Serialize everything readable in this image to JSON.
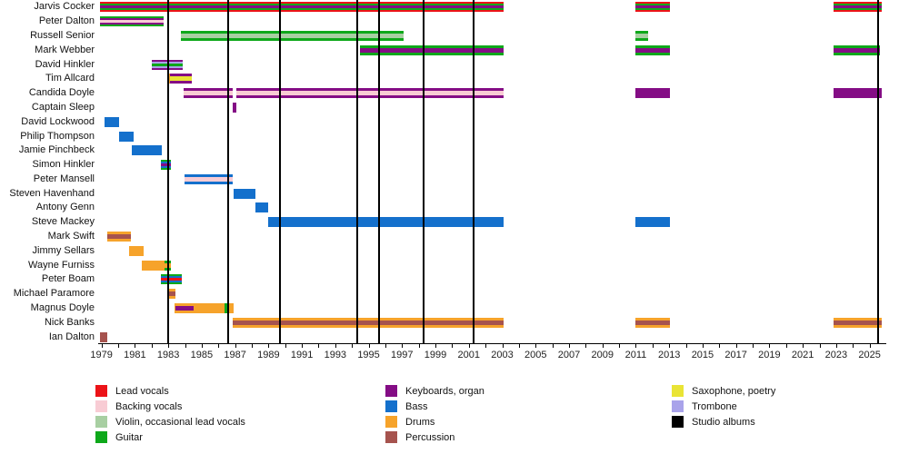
{
  "chart_data": {
    "type": "bar",
    "subtype": "gantt-timeline-band-members",
    "axis": {
      "year_min": 1978.8,
      "year_max": 2026.0,
      "tick_label_years": [
        1979,
        1981,
        1983,
        1985,
        1987,
        1989,
        1991,
        1993,
        1995,
        1997,
        1999,
        2001,
        2003,
        2005,
        2007,
        2009,
        2011,
        2013,
        2015,
        2017,
        2019,
        2021,
        2023,
        2025
      ],
      "minor_tick_step": 1,
      "grid": false
    },
    "palette": {
      "lead": "#ec1318",
      "backing": "#f8ccd4",
      "violin": "#a8cfa2",
      "guitar": "#0ea81a",
      "keys": "#840d85",
      "bass": "#1470cc",
      "drums": "#f6a32b",
      "perc": "#a6534e",
      "sax": "#e9e435",
      "tromb": "#a9a3ea",
      "album": "#000000"
    },
    "legend": {
      "position": "bottom",
      "columns": [
        [
          {
            "label": "Lead vocals",
            "color": "lead"
          },
          {
            "label": "Backing vocals",
            "color": "backing"
          },
          {
            "label": "Violin, occasional lead vocals",
            "color": "violin"
          },
          {
            "label": "Guitar",
            "color": "guitar"
          }
        ],
        [
          {
            "label": "Keyboards, organ",
            "color": "keys"
          },
          {
            "label": "Bass",
            "color": "bass"
          },
          {
            "label": "Drums",
            "color": "drums"
          },
          {
            "label": "Percussion",
            "color": "perc"
          }
        ],
        [
          {
            "label": "Saxophone, poetry",
            "color": "sax"
          },
          {
            "label": "Trombone",
            "color": "tromb"
          },
          {
            "label": "Studio albums",
            "color": "album"
          }
        ]
      ]
    },
    "album_lines": {
      "label": "Studio albums",
      "years": [
        1983.0,
        1986.6,
        1989.7,
        1994.3,
        1995.6,
        1998.3,
        2001.3,
        2025.5
      ]
    },
    "members": [
      {
        "name": "Jarvis Cocker",
        "segments": [
          {
            "start": 1978.9,
            "end": 2003.1,
            "colors": [
              "lead",
              "guitar",
              "keys"
            ]
          },
          {
            "start": 2011.0,
            "end": 2013.05,
            "colors": [
              "lead",
              "guitar",
              "keys"
            ]
          },
          {
            "start": 2022.85,
            "end": 2025.75,
            "colors": [
              "lead",
              "guitar",
              "keys"
            ]
          }
        ]
      },
      {
        "name": "Peter Dalton",
        "segments": [
          {
            "start": 1978.9,
            "end": 1982.7,
            "colors": [
              "guitar",
              "keys",
              "backing"
            ]
          }
        ]
      },
      {
        "name": "Russell Senior",
        "segments": [
          {
            "start": 1983.75,
            "end": 1997.1,
            "colors": [
              "guitar",
              "violin"
            ]
          },
          {
            "start": 2011.0,
            "end": 2011.75,
            "colors": [
              "guitar",
              "violin"
            ]
          }
        ]
      },
      {
        "name": "Mark Webber",
        "segments": [
          {
            "start": 1994.5,
            "end": 2003.1,
            "colors": [
              "guitar",
              "keys"
            ]
          },
          {
            "start": 2011.0,
            "end": 2013.05,
            "colors": [
              "guitar",
              "keys"
            ]
          },
          {
            "start": 2022.85,
            "end": 2025.6,
            "colors": [
              "guitar",
              "keys"
            ]
          }
        ]
      },
      {
        "name": "David Hinkler",
        "segments": [
          {
            "start": 1982.0,
            "end": 1983.85,
            "colors": [
              "keys",
              "tromb",
              "guitar"
            ]
          }
        ]
      },
      {
        "name": "Tim Allcard",
        "segments": [
          {
            "start": 1983.0,
            "end": 1983.4,
            "colors": [
              "drums"
            ]
          },
          {
            "start": 1983.1,
            "end": 1984.4,
            "colors": [
              "keys",
              "sax"
            ]
          }
        ]
      },
      {
        "name": "Candida Doyle",
        "segments": [
          {
            "start": 1983.9,
            "end": 1986.85,
            "colors": [
              "keys",
              "backing"
            ]
          },
          {
            "start": 1987.1,
            "end": 2003.1,
            "colors": [
              "keys",
              "backing"
            ]
          },
          {
            "start": 2011.0,
            "end": 2013.05,
            "colors": [
              "keys"
            ]
          },
          {
            "start": 2022.85,
            "end": 2025.75,
            "colors": [
              "keys"
            ]
          }
        ]
      },
      {
        "name": "Captain Sleep",
        "segments": [
          {
            "start": 1986.85,
            "end": 1987.1,
            "colors": [
              "keys"
            ]
          }
        ]
      },
      {
        "name": "David Lockwood",
        "segments": [
          {
            "start": 1979.2,
            "end": 1980.05,
            "colors": [
              "bass"
            ]
          }
        ]
      },
      {
        "name": "Philip Thompson",
        "segments": [
          {
            "start": 1980.05,
            "end": 1980.9,
            "colors": [
              "bass"
            ]
          }
        ]
      },
      {
        "name": "Jamie Pinchbeck",
        "segments": [
          {
            "start": 1980.8,
            "end": 1982.6,
            "colors": [
              "bass"
            ]
          }
        ]
      },
      {
        "name": "Simon Hinkler",
        "segments": [
          {
            "start": 1982.55,
            "end": 1983.15,
            "colors": [
              "guitar",
              "bass",
              "keys"
            ]
          }
        ]
      },
      {
        "name": "Peter Mansell",
        "segments": [
          {
            "start": 1983.95,
            "end": 1986.85,
            "colors": [
              "bass",
              "backing"
            ]
          }
        ]
      },
      {
        "name": "Steven Havenhand",
        "segments": [
          {
            "start": 1986.9,
            "end": 1988.2,
            "colors": [
              "bass"
            ]
          }
        ]
      },
      {
        "name": "Antony Genn",
        "segments": [
          {
            "start": 1988.2,
            "end": 1989.0,
            "colors": [
              "bass"
            ]
          }
        ]
      },
      {
        "name": "Steve Mackey",
        "segments": [
          {
            "start": 1989.0,
            "end": 2003.1,
            "colors": [
              "bass"
            ]
          },
          {
            "start": 2011.0,
            "end": 2013.05,
            "colors": [
              "bass"
            ]
          }
        ]
      },
      {
        "name": "Mark Swift",
        "segments": [
          {
            "start": 1979.35,
            "end": 1980.75,
            "colors": [
              "drums",
              "perc"
            ]
          }
        ]
      },
      {
        "name": "Jimmy Sellars",
        "segments": [
          {
            "start": 1980.65,
            "end": 1981.5,
            "colors": [
              "drums"
            ]
          }
        ]
      },
      {
        "name": "Wayne Furniss",
        "segments": [
          {
            "start": 1981.4,
            "end": 1982.75,
            "colors": [
              "drums"
            ]
          },
          {
            "start": 1982.75,
            "end": 1983.15,
            "colors": [
              "guitar",
              "drums"
            ]
          }
        ]
      },
      {
        "name": "Peter Boam",
        "segments": [
          {
            "start": 1982.55,
            "end": 1983.8,
            "colors": [
              "guitar",
              "bass",
              "lead"
            ]
          }
        ]
      },
      {
        "name": "Michael Paramore",
        "segments": [
          {
            "start": 1983.05,
            "end": 1983.45,
            "colors": [
              "drums",
              "perc"
            ]
          }
        ]
      },
      {
        "name": "Magnus Doyle",
        "segments": [
          {
            "start": 1983.4,
            "end": 1986.9,
            "colors": [
              "drums"
            ]
          },
          {
            "start": 1983.45,
            "end": 1984.5,
            "colors": [
              "drums",
              "keys"
            ]
          },
          {
            "start": 1986.35,
            "end": 1986.55,
            "colors": [
              "guitar"
            ]
          }
        ]
      },
      {
        "name": "Nick Banks",
        "segments": [
          {
            "start": 1986.85,
            "end": 2003.1,
            "colors": [
              "drums",
              "perc"
            ]
          },
          {
            "start": 2011.0,
            "end": 2013.05,
            "colors": [
              "drums",
              "perc"
            ]
          },
          {
            "start": 2022.85,
            "end": 2025.75,
            "colors": [
              "drums",
              "perc"
            ]
          }
        ]
      },
      {
        "name": "Ian Dalton",
        "segments": [
          {
            "start": 1978.9,
            "end": 1979.35,
            "colors": [
              "perc"
            ]
          }
        ]
      }
    ]
  }
}
